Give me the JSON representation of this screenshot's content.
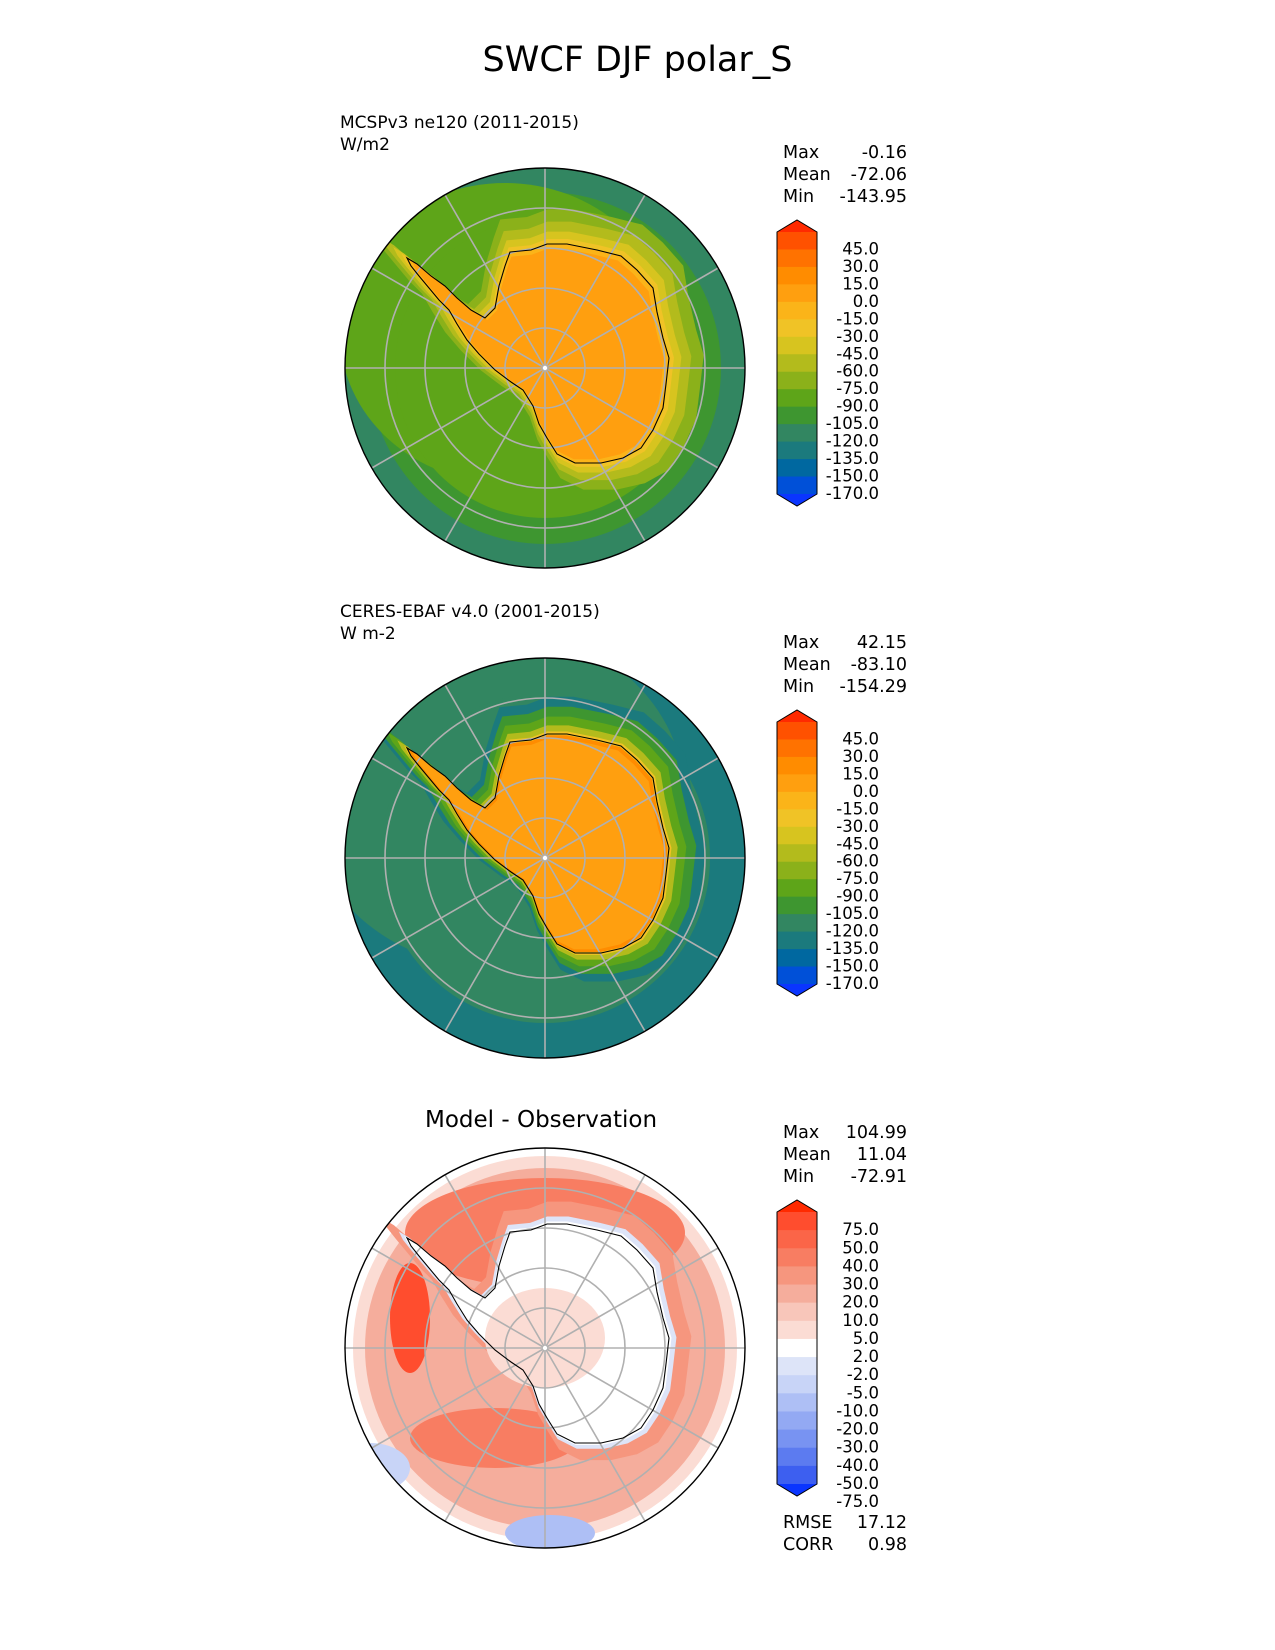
{
  "figure": {
    "title": "SWCF DJF polar_S"
  },
  "panels": [
    {
      "id": "model",
      "label_line1": "MCSPv3 ne120 (2011-2015)",
      "label_line2": "W/m2",
      "center_title": "",
      "stats": {
        "max_label": "Max",
        "max": "-0.16",
        "mean_label": "Mean",
        "mean": "-72.06",
        "min_label": "Min",
        "min": "-143.95"
      }
    },
    {
      "id": "obs",
      "label_line1": "CERES-EBAF v4.0 (2001-2015)",
      "label_line2": "W m-2",
      "center_title": "",
      "stats": {
        "max_label": "Max",
        "max": "42.15",
        "mean_label": "Mean",
        "mean": "-83.10",
        "min_label": "Min",
        "min": "-154.29"
      }
    },
    {
      "id": "diff",
      "label_line1": "",
      "label_line2": "",
      "center_title": "Model - Observation",
      "stats": {
        "max_label": "Max",
        "max": "104.99",
        "mean_label": "Mean",
        "mean": "11.04",
        "min_label": "Min",
        "min": "-72.91"
      },
      "metrics": {
        "rmse_label": "RMSE",
        "rmse": "17.12",
        "corr_label": "CORR",
        "corr": "0.98"
      }
    }
  ],
  "chart_data": [
    {
      "type": "heatmap",
      "projection": "south-polar-stereographic",
      "field": "SWCF",
      "season": "DJF",
      "colorbar": {
        "levels": [
          "45.0",
          "30.0",
          "15.0",
          "0.0",
          "-15.0",
          "-30.0",
          "-45.0",
          "-60.0",
          "-75.0",
          "-90.0",
          "-105.0",
          "-120.0",
          "-135.0",
          "-150.0",
          "-170.0"
        ],
        "colors": [
          "#ff2a00",
          "#ff5100",
          "#ff7200",
          "#ff8c00",
          "#ff9f0f",
          "#fbb419",
          "#f0c326",
          "#d7c41f",
          "#b3bb1c",
          "#8bb11a",
          "#5ea519",
          "#3e9630",
          "#328661",
          "#1b7a7d",
          "#0068a0",
          "#0050d8",
          "#0a35ff"
        ],
        "extend": "both"
      },
      "legend": "right"
    },
    {
      "type": "heatmap",
      "projection": "south-polar-stereographic",
      "field": "SWCF",
      "season": "DJF",
      "colorbar": {
        "levels": [
          "45.0",
          "30.0",
          "15.0",
          "0.0",
          "-15.0",
          "-30.0",
          "-45.0",
          "-60.0",
          "-75.0",
          "-90.0",
          "-105.0",
          "-120.0",
          "-135.0",
          "-150.0",
          "-170.0"
        ],
        "colors": [
          "#ff2a00",
          "#ff5100",
          "#ff7200",
          "#ff8c00",
          "#ff9f0f",
          "#fbb419",
          "#f0c326",
          "#d7c41f",
          "#b3bb1c",
          "#8bb11a",
          "#5ea519",
          "#3e9630",
          "#328661",
          "#1b7a7d",
          "#0068a0",
          "#0050d8",
          "#0a35ff"
        ],
        "extend": "both"
      },
      "legend": "right"
    },
    {
      "type": "heatmap",
      "projection": "south-polar-stereographic",
      "field": "SWCF difference",
      "season": "DJF",
      "colorbar": {
        "levels": [
          "75.0",
          "50.0",
          "40.0",
          "30.0",
          "20.0",
          "10.0",
          "5.0",
          "2.0",
          "-2.0",
          "-5.0",
          "-10.0",
          "-20.0",
          "-30.0",
          "-40.0",
          "-50.0",
          "-75.0"
        ],
        "colors": [
          "#ff2a00",
          "#ff4d2e",
          "#fb6548",
          "#f87d62",
          "#f6967e",
          "#f5ad9c",
          "#f8c6ba",
          "#fbdcd4",
          "#ffffff",
          "#dde4f8",
          "#c8d4f7",
          "#aebff5",
          "#93a9f3",
          "#7893f2",
          "#5c7bf0",
          "#3d5ff0",
          "#0a35ff"
        ],
        "extend": "both"
      },
      "legend": "right"
    }
  ]
}
